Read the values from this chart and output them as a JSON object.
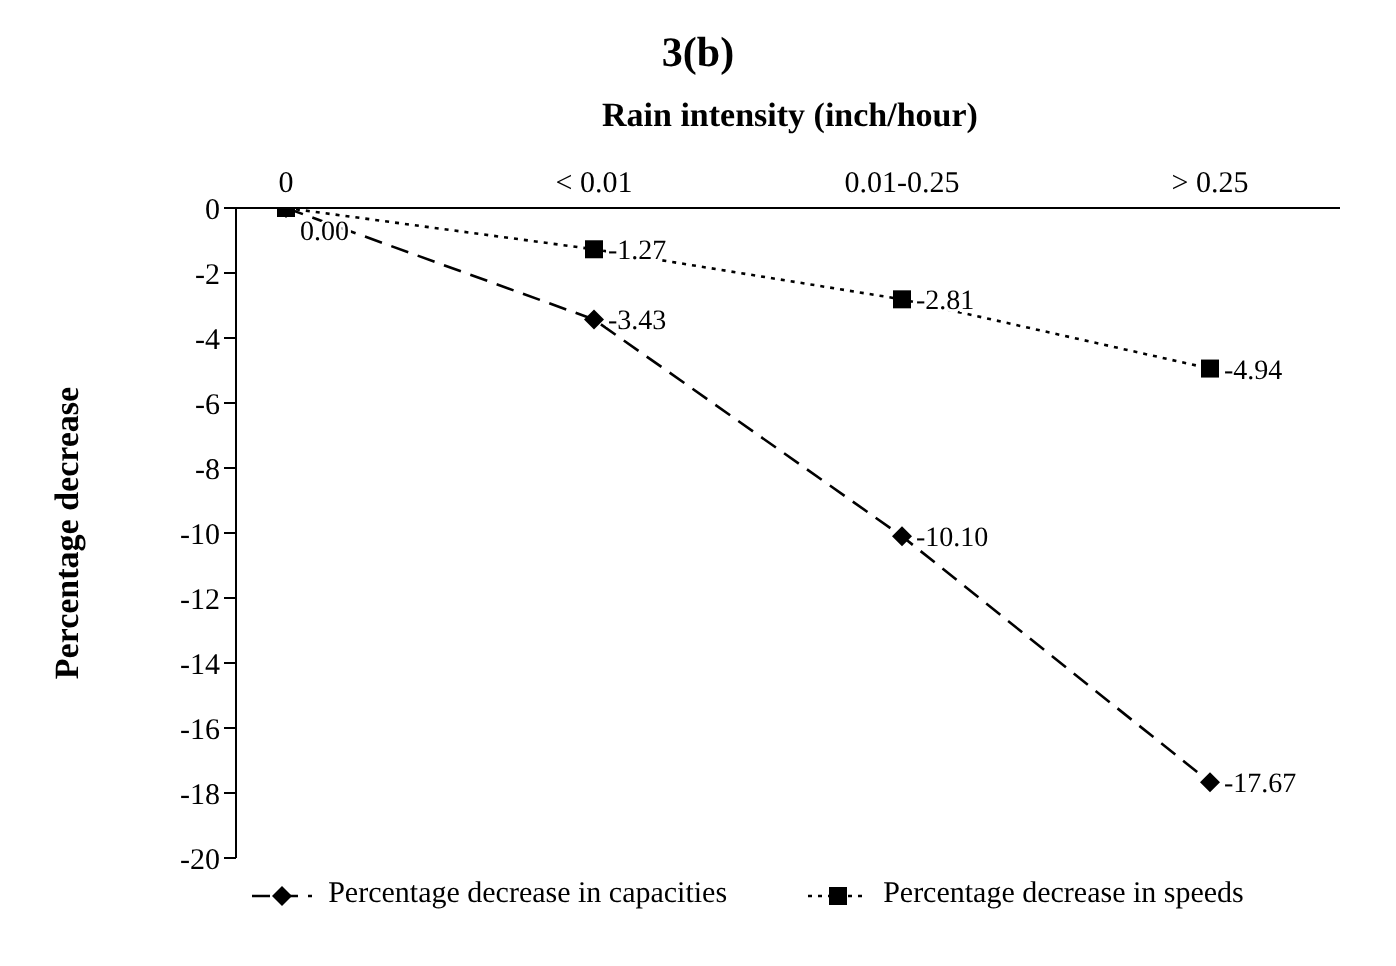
{
  "chart_data": {
    "type": "line",
    "title": "3(b)",
    "xlabel": "Rain intensity (inch/hour)",
    "ylabel": "Percentage decrease",
    "categories": [
      "0",
      "< 0.01",
      "0.01-0.25",
      "> 0.25"
    ],
    "series": [
      {
        "name": "Percentage decrease in capacities",
        "color": "#000000",
        "values": [
          0,
          -3.43,
          -10.1,
          -17.67
        ],
        "value_labels": [
          "0.00",
          "-3.43",
          "-10.10",
          "-17.67"
        ],
        "marker": "diamond",
        "line_style": "dashed"
      },
      {
        "name": "Percentage decrease in speeds",
        "color": "#000000",
        "values": [
          0,
          -1.27,
          -2.81,
          -4.94
        ],
        "value_labels": [
          null,
          "-1.27",
          "-2.81",
          "-4.94"
        ],
        "marker": "square",
        "line_style": "dotted"
      }
    ],
    "ylim": [
      -20,
      0
    ],
    "yticks": [
      0,
      -2,
      -4,
      -6,
      -8,
      -10,
      -12,
      -14,
      -16,
      -18,
      -20
    ],
    "legend": "bottom"
  }
}
